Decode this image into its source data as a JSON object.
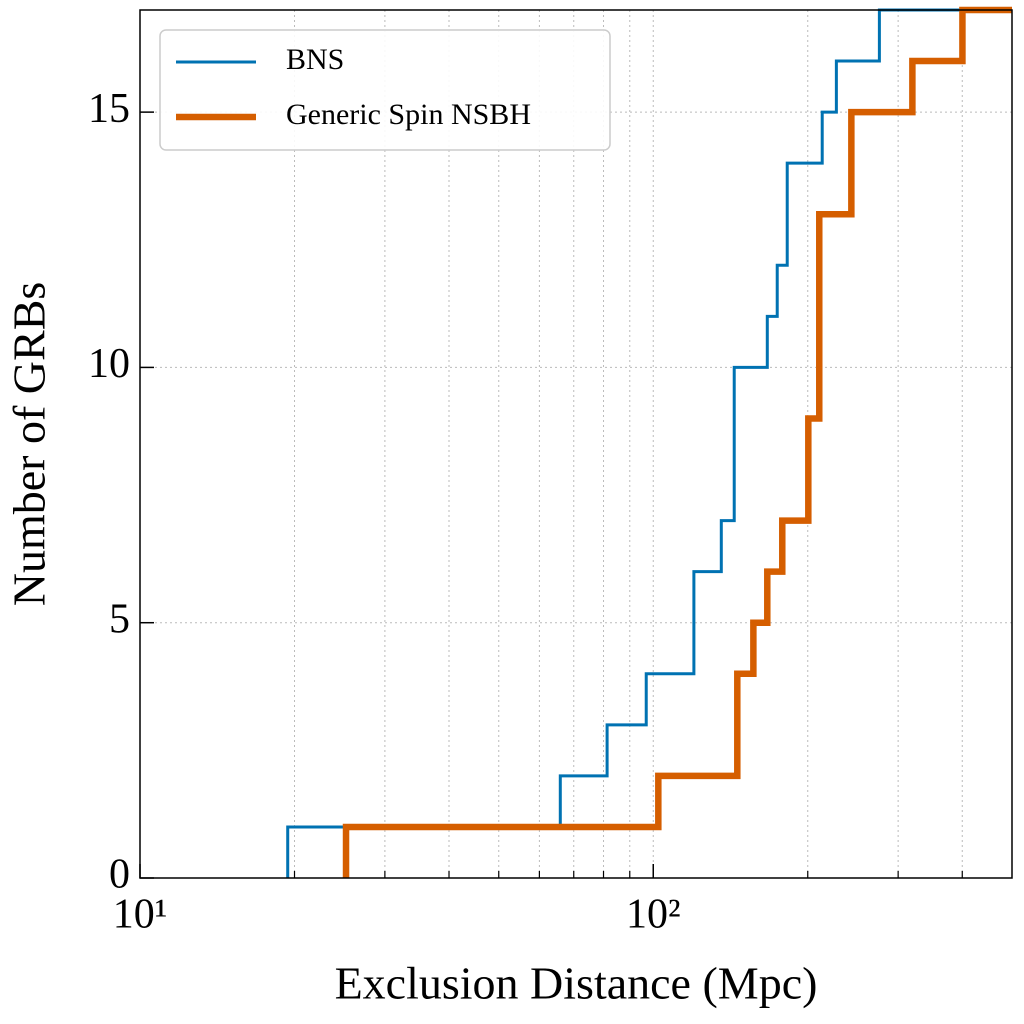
{
  "chart_data": {
    "type": "step",
    "x_label": "Exclusion Distance (Mpc)",
    "y_label": "Number of GRBs",
    "xscale": "log",
    "xlim": [
      10,
      500
    ],
    "ylim": [
      0,
      17
    ],
    "xticks": [
      {
        "value": 10,
        "label": "10¹"
      },
      {
        "value": 100,
        "label": "10²"
      }
    ],
    "xminorticks": [
      20,
      30,
      40,
      50,
      60,
      70,
      80,
      90,
      200,
      300,
      400
    ],
    "yticks": [
      0,
      5,
      10,
      15
    ],
    "grid": true,
    "legend": "upper left",
    "series": [
      {
        "name": "BNS",
        "color": "#0072b2",
        "x": [
          19.4,
          65.9,
          81.3,
          96.9,
          120,
          135.7,
          143.8,
          166.8,
          174.4,
          182.4,
          213.4,
          227.4,
          275.8
        ],
        "values": [
          1,
          2,
          3,
          4,
          6,
          7,
          10,
          11,
          12,
          14,
          15,
          16,
          17
        ]
      },
      {
        "name": "Generic Spin NSBH",
        "color": "#d55e00",
        "x": [
          25.2,
          102.3,
          145.8,
          156.7,
          166.8,
          178.4,
          200.5,
          210.6,
          243.2,
          319.8,
          400.3
        ],
        "values": [
          1,
          2,
          4,
          5,
          6,
          7,
          9,
          13,
          15,
          16,
          17
        ]
      }
    ]
  }
}
